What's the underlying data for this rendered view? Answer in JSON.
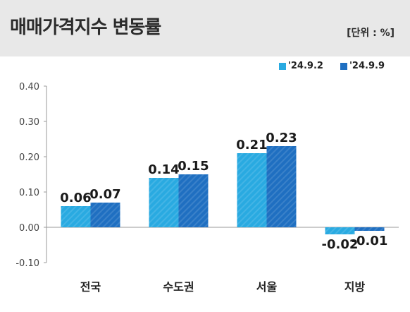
{
  "header": {
    "title": "매매가격지수 변동률",
    "unit": "[단위 : %]"
  },
  "colors": {
    "series1": "#29aae1",
    "series2": "#1f6fc1",
    "header_bg": "#e8e8e8"
  },
  "chart_data": {
    "type": "bar",
    "categories": [
      "전국",
      "수도권",
      "서울",
      "지방"
    ],
    "series": [
      {
        "name": "'24.9.2",
        "values": [
          0.06,
          0.14,
          0.21,
          -0.02
        ],
        "labels": [
          "0.06",
          "0.14",
          "0.21",
          "-0.02"
        ]
      },
      {
        "name": "'24.9.9",
        "values": [
          0.07,
          0.15,
          0.23,
          -0.01
        ],
        "labels": [
          "0.07",
          "0.15",
          "0.23",
          "-0.01"
        ]
      }
    ],
    "yticks": [
      "0.40",
      "0.30",
      "0.20",
      "0.10",
      "0.00",
      "-0.10"
    ],
    "ylim": [
      -0.1,
      0.4
    ],
    "title": "매매가격지수 변동률",
    "xlabel": "",
    "ylabel": "",
    "legend_position": "top-right",
    "grid": false
  }
}
